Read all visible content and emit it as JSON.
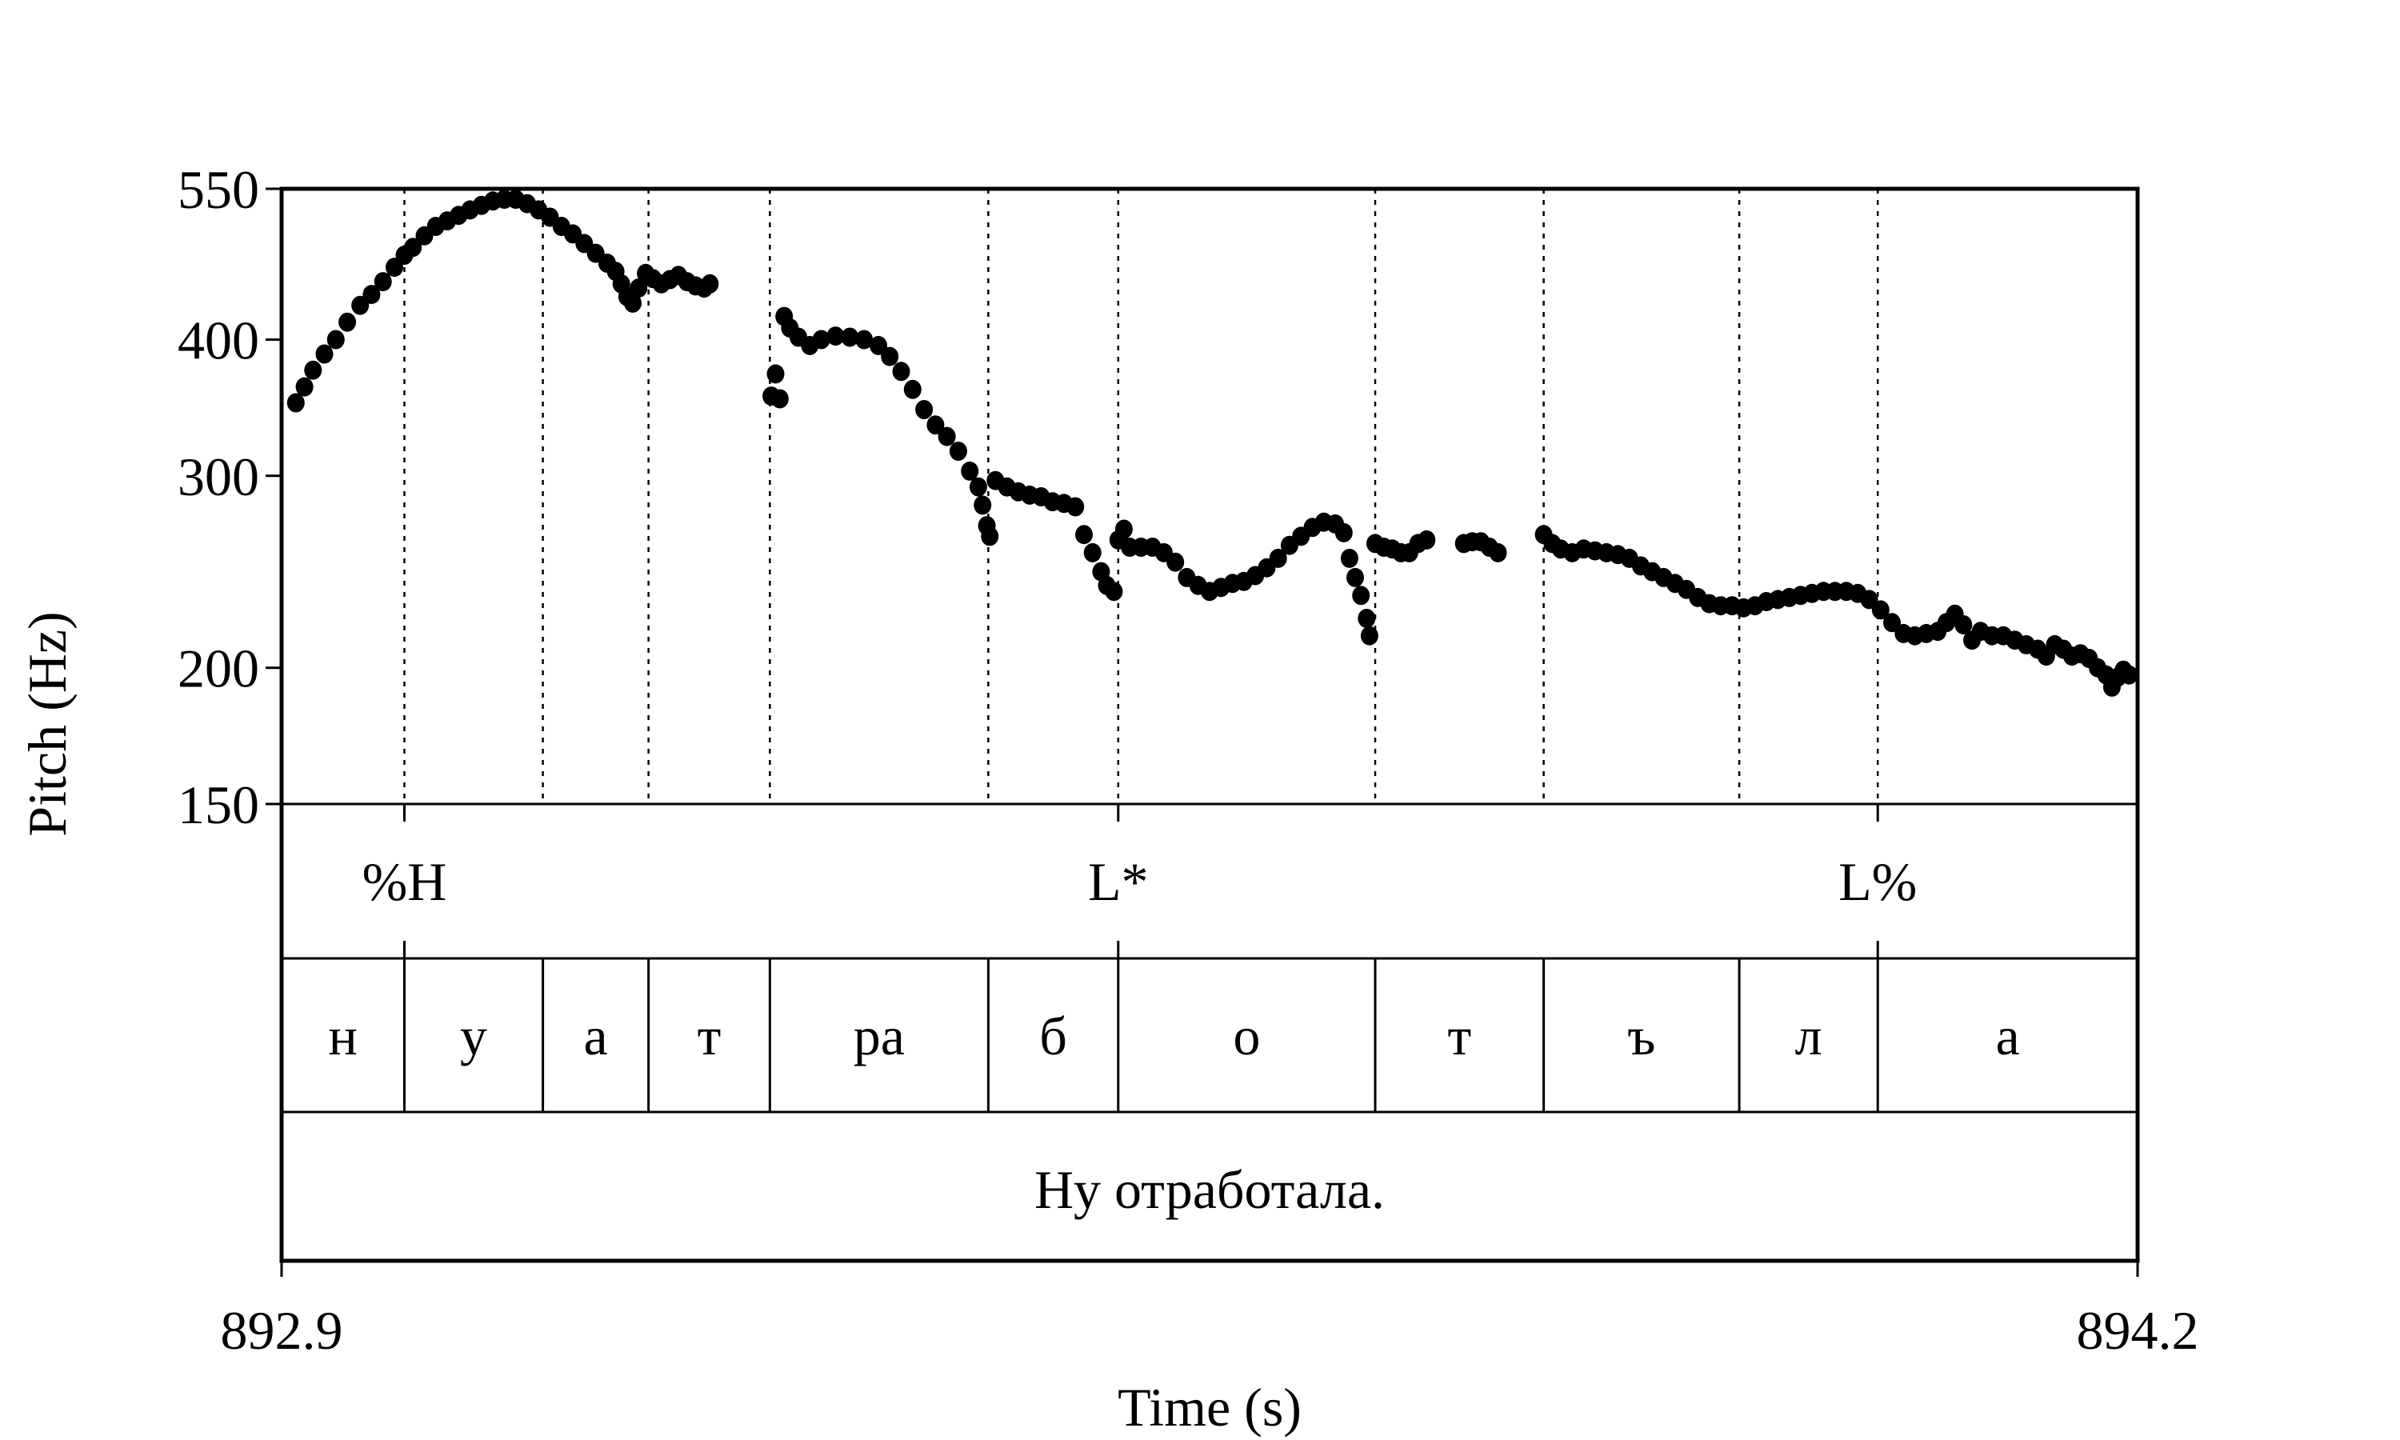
{
  "chart_data": {
    "type": "scatter",
    "title": "",
    "xlabel": "Time (s)",
    "ylabel": "Pitch (Hz)",
    "xlim": [
      892.9,
      894.2
    ],
    "ylim": [
      150,
      550
    ],
    "y_scale": "log",
    "x_ticks": [
      "892.9",
      "894.2"
    ],
    "y_ticks": [
      {
        "value": 150,
        "label": "150"
      },
      {
        "value": 200,
        "label": "200"
      },
      {
        "value": 300,
        "label": "300"
      },
      {
        "value": 400,
        "label": "400"
      },
      {
        "value": 550,
        "label": "550"
      }
    ],
    "grid": false,
    "boundaries": [
      892.986,
      893.083,
      893.157,
      893.242,
      893.395,
      893.486,
      893.666,
      893.784,
      893.921,
      894.018
    ],
    "tones": [
      {
        "label": "%H",
        "time": 892.986
      },
      {
        "label": "L*",
        "time": 893.486
      },
      {
        "label": "L%",
        "time": 894.018
      }
    ],
    "segments": [
      {
        "label": "н",
        "start": 892.9,
        "end": 892.986
      },
      {
        "label": "у",
        "start": 892.986,
        "end": 893.083
      },
      {
        "label": "а",
        "start": 893.083,
        "end": 893.157
      },
      {
        "label": "т",
        "start": 893.157,
        "end": 893.242
      },
      {
        "label": "ра",
        "start": 893.242,
        "end": 893.395
      },
      {
        "label": "б",
        "start": 893.395,
        "end": 893.486
      },
      {
        "label": "о",
        "start": 893.486,
        "end": 893.666
      },
      {
        "label": "т",
        "start": 893.666,
        "end": 893.784
      },
      {
        "label": "ъ",
        "start": 893.784,
        "end": 893.921
      },
      {
        "label": "л",
        "start": 893.921,
        "end": 894.018
      },
      {
        "label": "а",
        "start": 894.018,
        "end": 894.2
      }
    ],
    "sentence": "Ну отработала.",
    "series": [
      {
        "points": [
          [
            892.91,
            350
          ],
          [
            892.916,
            362
          ],
          [
            892.922,
            375
          ],
          [
            892.93,
            388
          ],
          [
            892.938,
            400
          ],
          [
            892.946,
            415
          ],
          [
            892.955,
            430
          ],
          [
            892.963,
            440
          ],
          [
            892.971,
            452
          ],
          [
            892.979,
            466
          ],
          [
            892.986,
            478
          ],
          [
            892.992,
            486
          ],
          [
            893.0,
            498
          ],
          [
            893.008,
            508
          ],
          [
            893.016,
            514
          ],
          [
            893.024,
            520
          ],
          [
            893.032,
            526
          ],
          [
            893.04,
            531
          ],
          [
            893.048,
            536
          ],
          [
            893.056,
            538
          ],
          [
            893.064,
            538
          ],
          [
            893.072,
            533
          ],
          [
            893.08,
            526
          ],
          [
            893.088,
            518
          ],
          [
            893.096,
            508
          ],
          [
            893.104,
            500
          ],
          [
            893.112,
            490
          ],
          [
            893.12,
            480
          ],
          [
            893.128,
            470
          ],
          [
            893.134,
            462
          ],
          [
            893.138,
            450
          ],
          [
            893.142,
            438
          ],
          [
            893.146,
            432
          ],
          [
            893.15,
            446
          ],
          [
            893.155,
            460
          ],
          [
            893.16,
            455
          ],
          [
            893.166,
            450
          ],
          [
            893.172,
            454
          ],
          [
            893.178,
            458
          ],
          [
            893.184,
            452
          ],
          [
            893.19,
            448
          ],
          [
            893.196,
            446
          ],
          [
            893.2,
            450
          ],
          [
            893.243,
            355
          ],
          [
            893.246,
            372
          ],
          [
            893.249,
            353
          ],
          [
            893.252,
            420
          ],
          [
            893.256,
            410
          ],
          [
            893.262,
            402
          ],
          [
            893.27,
            395
          ],
          [
            893.278,
            400
          ],
          [
            893.288,
            403
          ],
          [
            893.298,
            402
          ],
          [
            893.308,
            400
          ],
          [
            893.318,
            395
          ],
          [
            893.326,
            386
          ],
          [
            893.334,
            374
          ],
          [
            893.342,
            360
          ],
          [
            893.35,
            345
          ],
          [
            893.358,
            334
          ],
          [
            893.366,
            326
          ],
          [
            893.374,
            316
          ],
          [
            893.382,
            303
          ],
          [
            893.388,
            293
          ],
          [
            893.391,
            282
          ],
          [
            893.394,
            270
          ],
          [
            893.396,
            264
          ],
          [
            893.4,
            297
          ],
          [
            893.408,
            293
          ],
          [
            893.416,
            290
          ],
          [
            893.424,
            288
          ],
          [
            893.432,
            287
          ],
          [
            893.44,
            284
          ],
          [
            893.448,
            283
          ],
          [
            893.456,
            281
          ],
          [
            893.462,
            265
          ],
          [
            893.468,
            255
          ],
          [
            893.474,
            245
          ],
          [
            893.478,
            238
          ],
          [
            893.483,
            235
          ],
          [
            893.486,
            262
          ],
          [
            893.49,
            268
          ],
          [
            893.494,
            258
          ],
          [
            893.502,
            258
          ],
          [
            893.51,
            258
          ],
          [
            893.518,
            255
          ],
          [
            893.526,
            250
          ],
          [
            893.534,
            242
          ],
          [
            893.542,
            238
          ],
          [
            893.55,
            235
          ],
          [
            893.558,
            237
          ],
          [
            893.566,
            239
          ],
          [
            893.574,
            240
          ],
          [
            893.582,
            243
          ],
          [
            893.59,
            247
          ],
          [
            893.598,
            252
          ],
          [
            893.606,
            259
          ],
          [
            893.614,
            264
          ],
          [
            893.622,
            269
          ],
          [
            893.63,
            272
          ],
          [
            893.638,
            271
          ],
          [
            893.644,
            266
          ],
          [
            893.648,
            252
          ],
          [
            893.652,
            242
          ],
          [
            893.656,
            233
          ],
          [
            893.66,
            222
          ],
          [
            893.662,
            214
          ],
          [
            893.666,
            260
          ],
          [
            893.672,
            258
          ],
          [
            893.678,
            257
          ],
          [
            893.684,
            255
          ],
          [
            893.69,
            255
          ],
          [
            893.696,
            260
          ],
          [
            893.702,
            262
          ],
          [
            893.728,
            260
          ],
          [
            893.734,
            261
          ],
          [
            893.74,
            261
          ],
          [
            893.746,
            258
          ],
          [
            893.752,
            255
          ],
          [
            893.784,
            265
          ],
          [
            893.79,
            260
          ],
          [
            893.796,
            257
          ],
          [
            893.804,
            255
          ],
          [
            893.812,
            257
          ],
          [
            893.82,
            256
          ],
          [
            893.828,
            255
          ],
          [
            893.836,
            254
          ],
          [
            893.844,
            252
          ],
          [
            893.852,
            248
          ],
          [
            893.86,
            245
          ],
          [
            893.868,
            242
          ],
          [
            893.876,
            239
          ],
          [
            893.884,
            236
          ],
          [
            893.892,
            232
          ],
          [
            893.9,
            229
          ],
          [
            893.908,
            228
          ],
          [
            893.916,
            228
          ],
          [
            893.924,
            227
          ],
          [
            893.932,
            228
          ],
          [
            893.94,
            230
          ],
          [
            893.948,
            231
          ],
          [
            893.956,
            232
          ],
          [
            893.964,
            233
          ],
          [
            893.972,
            234
          ],
          [
            893.98,
            235
          ],
          [
            893.988,
            235
          ],
          [
            893.996,
            235
          ],
          [
            894.004,
            234
          ],
          [
            894.012,
            231
          ],
          [
            894.02,
            226
          ],
          [
            894.028,
            220
          ],
          [
            894.036,
            215
          ],
          [
            894.044,
            214
          ],
          [
            894.052,
            215
          ],
          [
            894.06,
            216
          ],
          [
            894.066,
            220
          ],
          [
            894.072,
            224
          ],
          [
            894.078,
            219
          ],
          [
            894.084,
            212
          ],
          [
            894.09,
            216
          ],
          [
            894.098,
            214
          ],
          [
            894.106,
            214
          ],
          [
            894.114,
            212
          ],
          [
            894.122,
            210
          ],
          [
            894.13,
            208
          ],
          [
            894.136,
            205
          ],
          [
            894.142,
            210
          ],
          [
            894.148,
            208
          ],
          [
            894.154,
            205
          ],
          [
            894.16,
            206
          ],
          [
            894.166,
            204
          ],
          [
            894.172,
            200
          ],
          [
            894.178,
            197
          ],
          [
            894.182,
            192
          ],
          [
            894.186,
            196
          ],
          [
            894.19,
            199
          ],
          [
            894.194,
            197
          ]
        ]
      }
    ]
  }
}
